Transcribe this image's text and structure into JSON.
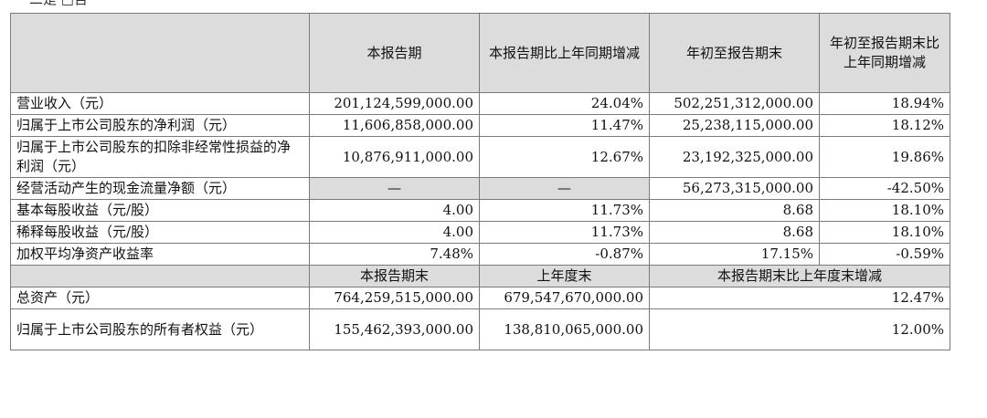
{
  "top_note": "二是 □否",
  "header": {
    "blank": "",
    "current_period": "本报告期",
    "current_period_yoy": "本报告期比上年同期增减",
    "ytd": "年初至报告期末",
    "ytd_yoy": "年初至报告期末比上年同期增减"
  },
  "rows": [
    {
      "label": "营业收入（元）",
      "current": "201,124,599,000.00",
      "current_yoy": "24.04%",
      "ytd": "502,251,312,000.00",
      "ytd_yoy": "18.94%"
    },
    {
      "label": "归属于上市公司股东的净利润（元）",
      "current": "11,606,858,000.00",
      "current_yoy": "11.47%",
      "ytd": "25,238,115,000.00",
      "ytd_yoy": "18.12%"
    },
    {
      "label": "归属于上市公司股东的扣除非经常性损益的净利润（元）",
      "current": "10,876,911,000.00",
      "current_yoy": "12.67%",
      "ytd": "23,192,325,000.00",
      "ytd_yoy": "19.86%"
    },
    {
      "label": "经营活动产生的现金流量净额（元）",
      "current": "—",
      "current_yoy": "—",
      "ytd": "56,273,315,000.00",
      "ytd_yoy": "-42.50%"
    },
    {
      "label": "基本每股收益（元/股）",
      "current": "4.00",
      "current_yoy": "11.73%",
      "ytd": "8.68",
      "ytd_yoy": "18.10%"
    },
    {
      "label": "稀释每股收益（元/股）",
      "current": "4.00",
      "current_yoy": "11.73%",
      "ytd": "8.68",
      "ytd_yoy": "18.10%"
    },
    {
      "label": "加权平均净资产收益率",
      "current": "7.48%",
      "current_yoy": "-0.87%",
      "ytd": "17.15%",
      "ytd_yoy": "-0.59%"
    }
  ],
  "balance_header": {
    "period_end": "本报告期末",
    "prior_year_end": "上年度末",
    "change": "本报告期末比上年度末增减"
  },
  "balance_rows": [
    {
      "label": "总资产（元）",
      "period_end": "764,259,515,000.00",
      "prior_year_end": "679,547,670,000.00",
      "change": "12.47%"
    },
    {
      "label": "归属于上市公司股东的所有者权益（元）",
      "period_end": "155,462,393,000.00",
      "prior_year_end": "138,810,065,000.00",
      "change": "12.00%"
    }
  ]
}
